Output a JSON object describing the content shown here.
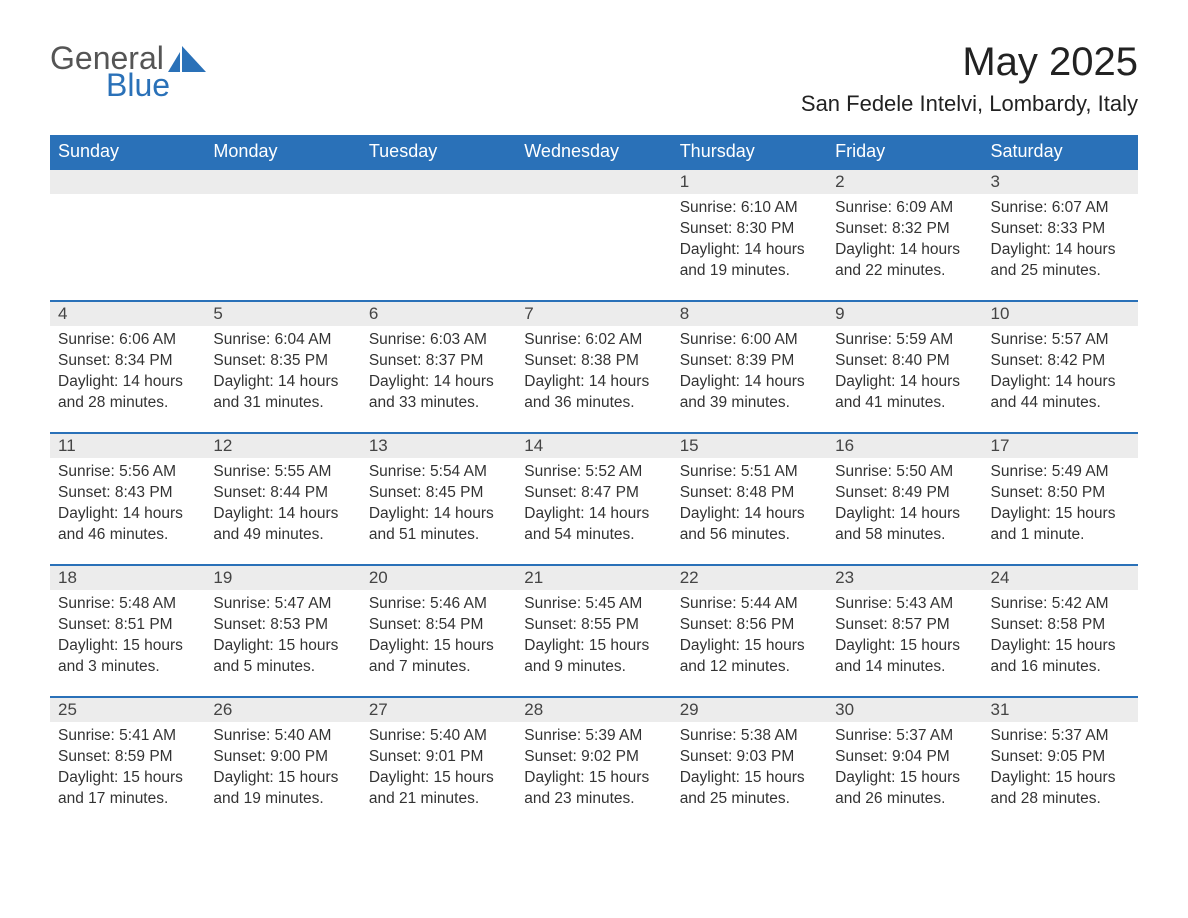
{
  "logo": {
    "general": "General",
    "blue": "Blue"
  },
  "title": "May 2025",
  "location": "San Fedele Intelvi, Lombardy, Italy",
  "colors": {
    "header_bg": "#2a71b8",
    "header_text": "#ffffff",
    "daybar_bg": "#ececec",
    "daybar_border": "#2a71b8",
    "text": "#333333",
    "background": "#ffffff"
  },
  "weekdays": [
    "Sunday",
    "Monday",
    "Tuesday",
    "Wednesday",
    "Thursday",
    "Friday",
    "Saturday"
  ],
  "weeks": [
    [
      null,
      null,
      null,
      null,
      {
        "day": "1",
        "sunrise": "Sunrise: 6:10 AM",
        "sunset": "Sunset: 8:30 PM",
        "daylight": "Daylight: 14 hours and 19 minutes."
      },
      {
        "day": "2",
        "sunrise": "Sunrise: 6:09 AM",
        "sunset": "Sunset: 8:32 PM",
        "daylight": "Daylight: 14 hours and 22 minutes."
      },
      {
        "day": "3",
        "sunrise": "Sunrise: 6:07 AM",
        "sunset": "Sunset: 8:33 PM",
        "daylight": "Daylight: 14 hours and 25 minutes."
      }
    ],
    [
      {
        "day": "4",
        "sunrise": "Sunrise: 6:06 AM",
        "sunset": "Sunset: 8:34 PM",
        "daylight": "Daylight: 14 hours and 28 minutes."
      },
      {
        "day": "5",
        "sunrise": "Sunrise: 6:04 AM",
        "sunset": "Sunset: 8:35 PM",
        "daylight": "Daylight: 14 hours and 31 minutes."
      },
      {
        "day": "6",
        "sunrise": "Sunrise: 6:03 AM",
        "sunset": "Sunset: 8:37 PM",
        "daylight": "Daylight: 14 hours and 33 minutes."
      },
      {
        "day": "7",
        "sunrise": "Sunrise: 6:02 AM",
        "sunset": "Sunset: 8:38 PM",
        "daylight": "Daylight: 14 hours and 36 minutes."
      },
      {
        "day": "8",
        "sunrise": "Sunrise: 6:00 AM",
        "sunset": "Sunset: 8:39 PM",
        "daylight": "Daylight: 14 hours and 39 minutes."
      },
      {
        "day": "9",
        "sunrise": "Sunrise: 5:59 AM",
        "sunset": "Sunset: 8:40 PM",
        "daylight": "Daylight: 14 hours and 41 minutes."
      },
      {
        "day": "10",
        "sunrise": "Sunrise: 5:57 AM",
        "sunset": "Sunset: 8:42 PM",
        "daylight": "Daylight: 14 hours and 44 minutes."
      }
    ],
    [
      {
        "day": "11",
        "sunrise": "Sunrise: 5:56 AM",
        "sunset": "Sunset: 8:43 PM",
        "daylight": "Daylight: 14 hours and 46 minutes."
      },
      {
        "day": "12",
        "sunrise": "Sunrise: 5:55 AM",
        "sunset": "Sunset: 8:44 PM",
        "daylight": "Daylight: 14 hours and 49 minutes."
      },
      {
        "day": "13",
        "sunrise": "Sunrise: 5:54 AM",
        "sunset": "Sunset: 8:45 PM",
        "daylight": "Daylight: 14 hours and 51 minutes."
      },
      {
        "day": "14",
        "sunrise": "Sunrise: 5:52 AM",
        "sunset": "Sunset: 8:47 PM",
        "daylight": "Daylight: 14 hours and 54 minutes."
      },
      {
        "day": "15",
        "sunrise": "Sunrise: 5:51 AM",
        "sunset": "Sunset: 8:48 PM",
        "daylight": "Daylight: 14 hours and 56 minutes."
      },
      {
        "day": "16",
        "sunrise": "Sunrise: 5:50 AM",
        "sunset": "Sunset: 8:49 PM",
        "daylight": "Daylight: 14 hours and 58 minutes."
      },
      {
        "day": "17",
        "sunrise": "Sunrise: 5:49 AM",
        "sunset": "Sunset: 8:50 PM",
        "daylight": "Daylight: 15 hours and 1 minute."
      }
    ],
    [
      {
        "day": "18",
        "sunrise": "Sunrise: 5:48 AM",
        "sunset": "Sunset: 8:51 PM",
        "daylight": "Daylight: 15 hours and 3 minutes."
      },
      {
        "day": "19",
        "sunrise": "Sunrise: 5:47 AM",
        "sunset": "Sunset: 8:53 PM",
        "daylight": "Daylight: 15 hours and 5 minutes."
      },
      {
        "day": "20",
        "sunrise": "Sunrise: 5:46 AM",
        "sunset": "Sunset: 8:54 PM",
        "daylight": "Daylight: 15 hours and 7 minutes."
      },
      {
        "day": "21",
        "sunrise": "Sunrise: 5:45 AM",
        "sunset": "Sunset: 8:55 PM",
        "daylight": "Daylight: 15 hours and 9 minutes."
      },
      {
        "day": "22",
        "sunrise": "Sunrise: 5:44 AM",
        "sunset": "Sunset: 8:56 PM",
        "daylight": "Daylight: 15 hours and 12 minutes."
      },
      {
        "day": "23",
        "sunrise": "Sunrise: 5:43 AM",
        "sunset": "Sunset: 8:57 PM",
        "daylight": "Daylight: 15 hours and 14 minutes."
      },
      {
        "day": "24",
        "sunrise": "Sunrise: 5:42 AM",
        "sunset": "Sunset: 8:58 PM",
        "daylight": "Daylight: 15 hours and 16 minutes."
      }
    ],
    [
      {
        "day": "25",
        "sunrise": "Sunrise: 5:41 AM",
        "sunset": "Sunset: 8:59 PM",
        "daylight": "Daylight: 15 hours and 17 minutes."
      },
      {
        "day": "26",
        "sunrise": "Sunrise: 5:40 AM",
        "sunset": "Sunset: 9:00 PM",
        "daylight": "Daylight: 15 hours and 19 minutes."
      },
      {
        "day": "27",
        "sunrise": "Sunrise: 5:40 AM",
        "sunset": "Sunset: 9:01 PM",
        "daylight": "Daylight: 15 hours and 21 minutes."
      },
      {
        "day": "28",
        "sunrise": "Sunrise: 5:39 AM",
        "sunset": "Sunset: 9:02 PM",
        "daylight": "Daylight: 15 hours and 23 minutes."
      },
      {
        "day": "29",
        "sunrise": "Sunrise: 5:38 AM",
        "sunset": "Sunset: 9:03 PM",
        "daylight": "Daylight: 15 hours and 25 minutes."
      },
      {
        "day": "30",
        "sunrise": "Sunrise: 5:37 AM",
        "sunset": "Sunset: 9:04 PM",
        "daylight": "Daylight: 15 hours and 26 minutes."
      },
      {
        "day": "31",
        "sunrise": "Sunrise: 5:37 AM",
        "sunset": "Sunset: 9:05 PM",
        "daylight": "Daylight: 15 hours and 28 minutes."
      }
    ]
  ]
}
